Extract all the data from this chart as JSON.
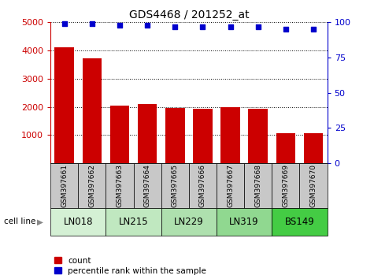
{
  "title": "GDS4468 / 201252_at",
  "samples": [
    "GSM397661",
    "GSM397662",
    "GSM397663",
    "GSM397664",
    "GSM397665",
    "GSM397666",
    "GSM397667",
    "GSM397668",
    "GSM397669",
    "GSM397670"
  ],
  "counts": [
    4100,
    3720,
    2050,
    2100,
    1950,
    1940,
    1980,
    1920,
    1060,
    1060
  ],
  "percentile_ranks": [
    99,
    99,
    98,
    98,
    97,
    97,
    97,
    97,
    95,
    95
  ],
  "cell_lines": [
    {
      "label": "LN018",
      "start": 0,
      "end": 2,
      "color": "#d4f0d4"
    },
    {
      "label": "LN215",
      "start": 2,
      "end": 4,
      "color": "#c0e8c0"
    },
    {
      "label": "LN229",
      "start": 4,
      "end": 6,
      "color": "#aee0ae"
    },
    {
      "label": "LN319",
      "start": 6,
      "end": 8,
      "color": "#90d890"
    },
    {
      "label": "BS149",
      "start": 8,
      "end": 10,
      "color": "#44cc44"
    }
  ],
  "bar_color": "#cc0000",
  "dot_color": "#0000cc",
  "left_axis_color": "#cc0000",
  "right_axis_color": "#0000cc",
  "ylim_left": [
    0,
    5000
  ],
  "ylim_right": [
    0,
    100
  ],
  "yticks_left": [
    1000,
    2000,
    3000,
    4000,
    5000
  ],
  "yticks_right": [
    0,
    25,
    50,
    75,
    100
  ],
  "sample_box_color": "#c8c8c8",
  "legend_count_label": "count",
  "legend_pct_label": "percentile rank within the sample",
  "cell_line_label": "cell line"
}
